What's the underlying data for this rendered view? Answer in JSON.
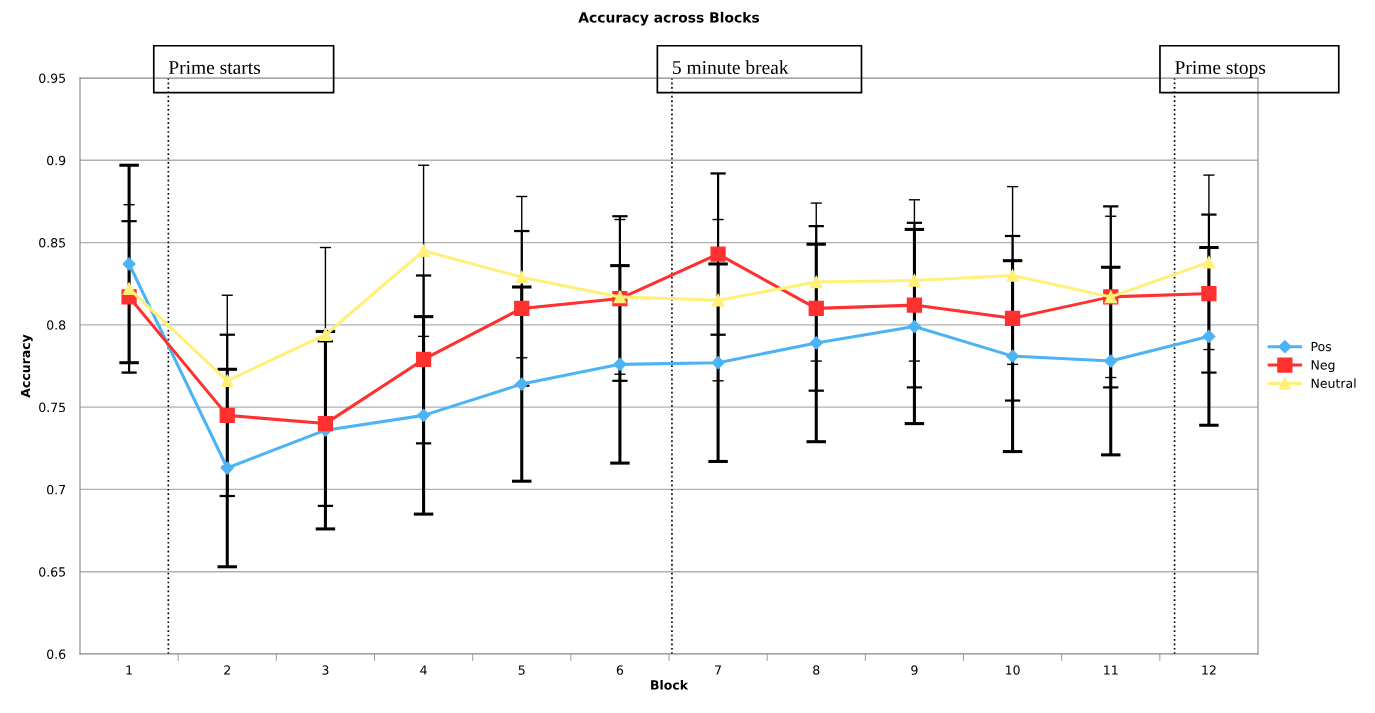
{
  "chart_data": {
    "type": "line",
    "title": "Accuracy across Blocks",
    "xlabel": "Block",
    "ylabel": "Accuracy",
    "x": [
      1,
      2,
      3,
      4,
      5,
      6,
      7,
      8,
      9,
      10,
      11,
      12
    ],
    "xlim": [
      0.5,
      12.5
    ],
    "xticks": [
      1,
      {
        "value": 1.5,
        "label": null
      },
      2,
      {
        "value": 2.5,
        "label": null
      },
      3,
      {
        "value": 3.5,
        "label": null
      },
      4,
      {
        "value": 4.5,
        "label": null
      },
      5,
      {
        "value": 5.5,
        "label": null
      },
      6,
      {
        "value": 6.5,
        "label": null
      },
      7,
      {
        "value": 7.5,
        "label": null
      },
      8,
      {
        "value": 8.5,
        "label": null
      },
      9,
      {
        "value": 9.5,
        "label": null
      },
      10,
      {
        "value": 10.5,
        "label": null
      },
      11,
      {
        "value": 11.5,
        "label": null
      },
      12
    ],
    "ylim": [
      0.6,
      0.95
    ],
    "yticks": [
      0.6,
      0.65,
      0.7,
      0.75,
      0.8,
      0.85,
      0.9,
      0.95
    ],
    "grid": "y",
    "legend": "right",
    "series": [
      {
        "name": "Pos",
        "color": "#4db3f5",
        "marker": "diamond",
        "values": [
          0.837,
          0.713,
          0.736,
          0.745,
          0.764,
          0.776,
          0.777,
          0.789,
          0.799,
          0.781,
          0.778,
          0.793
        ],
        "errors": [
          0.06,
          0.06,
          0.06,
          0.06,
          0.059,
          0.06,
          0.06,
          0.06,
          0.059,
          0.058,
          0.057,
          0.054
        ]
      },
      {
        "name": "Neg",
        "color": "#ff3030",
        "marker": "square",
        "values": [
          0.817,
          0.745,
          0.74,
          0.779,
          0.81,
          0.816,
          0.843,
          0.81,
          0.812,
          0.804,
          0.817,
          0.819
        ],
        "errors": [
          0.046,
          0.049,
          0.05,
          0.051,
          0.047,
          0.05,
          0.049,
          0.05,
          0.05,
          0.05,
          0.055,
          0.048
        ]
      },
      {
        "name": "Neutral",
        "color": "#fff07a",
        "marker": "triangle",
        "values": [
          0.822,
          0.766,
          0.794,
          0.845,
          0.829,
          0.817,
          0.815,
          0.826,
          0.827,
          0.83,
          0.817,
          0.838
        ],
        "errors": [
          0.051,
          0.052,
          0.053,
          0.052,
          0.049,
          0.047,
          0.049,
          0.048,
          0.049,
          0.054,
          0.049,
          0.053
        ]
      }
    ],
    "ref_lines": [
      {
        "axis": "x",
        "value": 1.4,
        "label": "Prime starts",
        "line_style": "dotted",
        "color": "#000000"
      },
      {
        "axis": "x",
        "value": 6.53,
        "label": "5 minute break",
        "line_style": "dotted",
        "color": "#000000"
      },
      {
        "axis": "x",
        "value": 11.65,
        "label": "Prime stops",
        "line_style": "dotted",
        "color": "#000000"
      }
    ]
  }
}
